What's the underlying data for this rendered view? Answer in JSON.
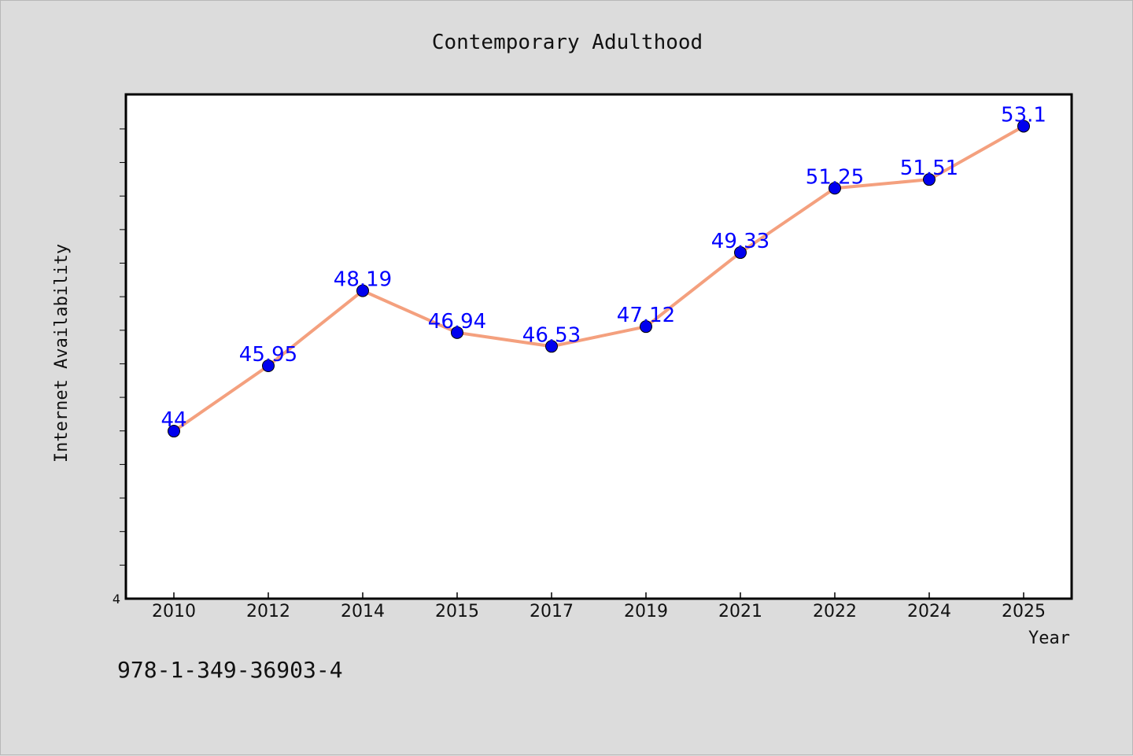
{
  "chart_data": {
    "type": "line",
    "title": "Contemporary Adulthood",
    "xlabel": "Year",
    "ylabel": "Internet Availability",
    "categories": [
      "2010",
      "2012",
      "2014",
      "2015",
      "2017",
      "2019",
      "2021",
      "2022",
      "2024",
      "2025"
    ],
    "series": [
      {
        "values": [
          44,
          45.95,
          48.19,
          46.94,
          46.53,
          47.12,
          49.33,
          51.25,
          51.51,
          53.1
        ],
        "labels": [
          "44",
          "45.95",
          "48.19",
          "46.94",
          "46.53",
          "47.12",
          "49.33",
          "51.25",
          "51.51",
          "53.1"
        ],
        "line_color": "#f4a07e",
        "marker_color": "#0000ee"
      }
    ],
    "y_tick_label": "4",
    "ylim": [
      39,
      54.05
    ],
    "grid": false,
    "label_color": "#0000ff"
  },
  "footer": {
    "code": "978-1-349-36903-4"
  }
}
